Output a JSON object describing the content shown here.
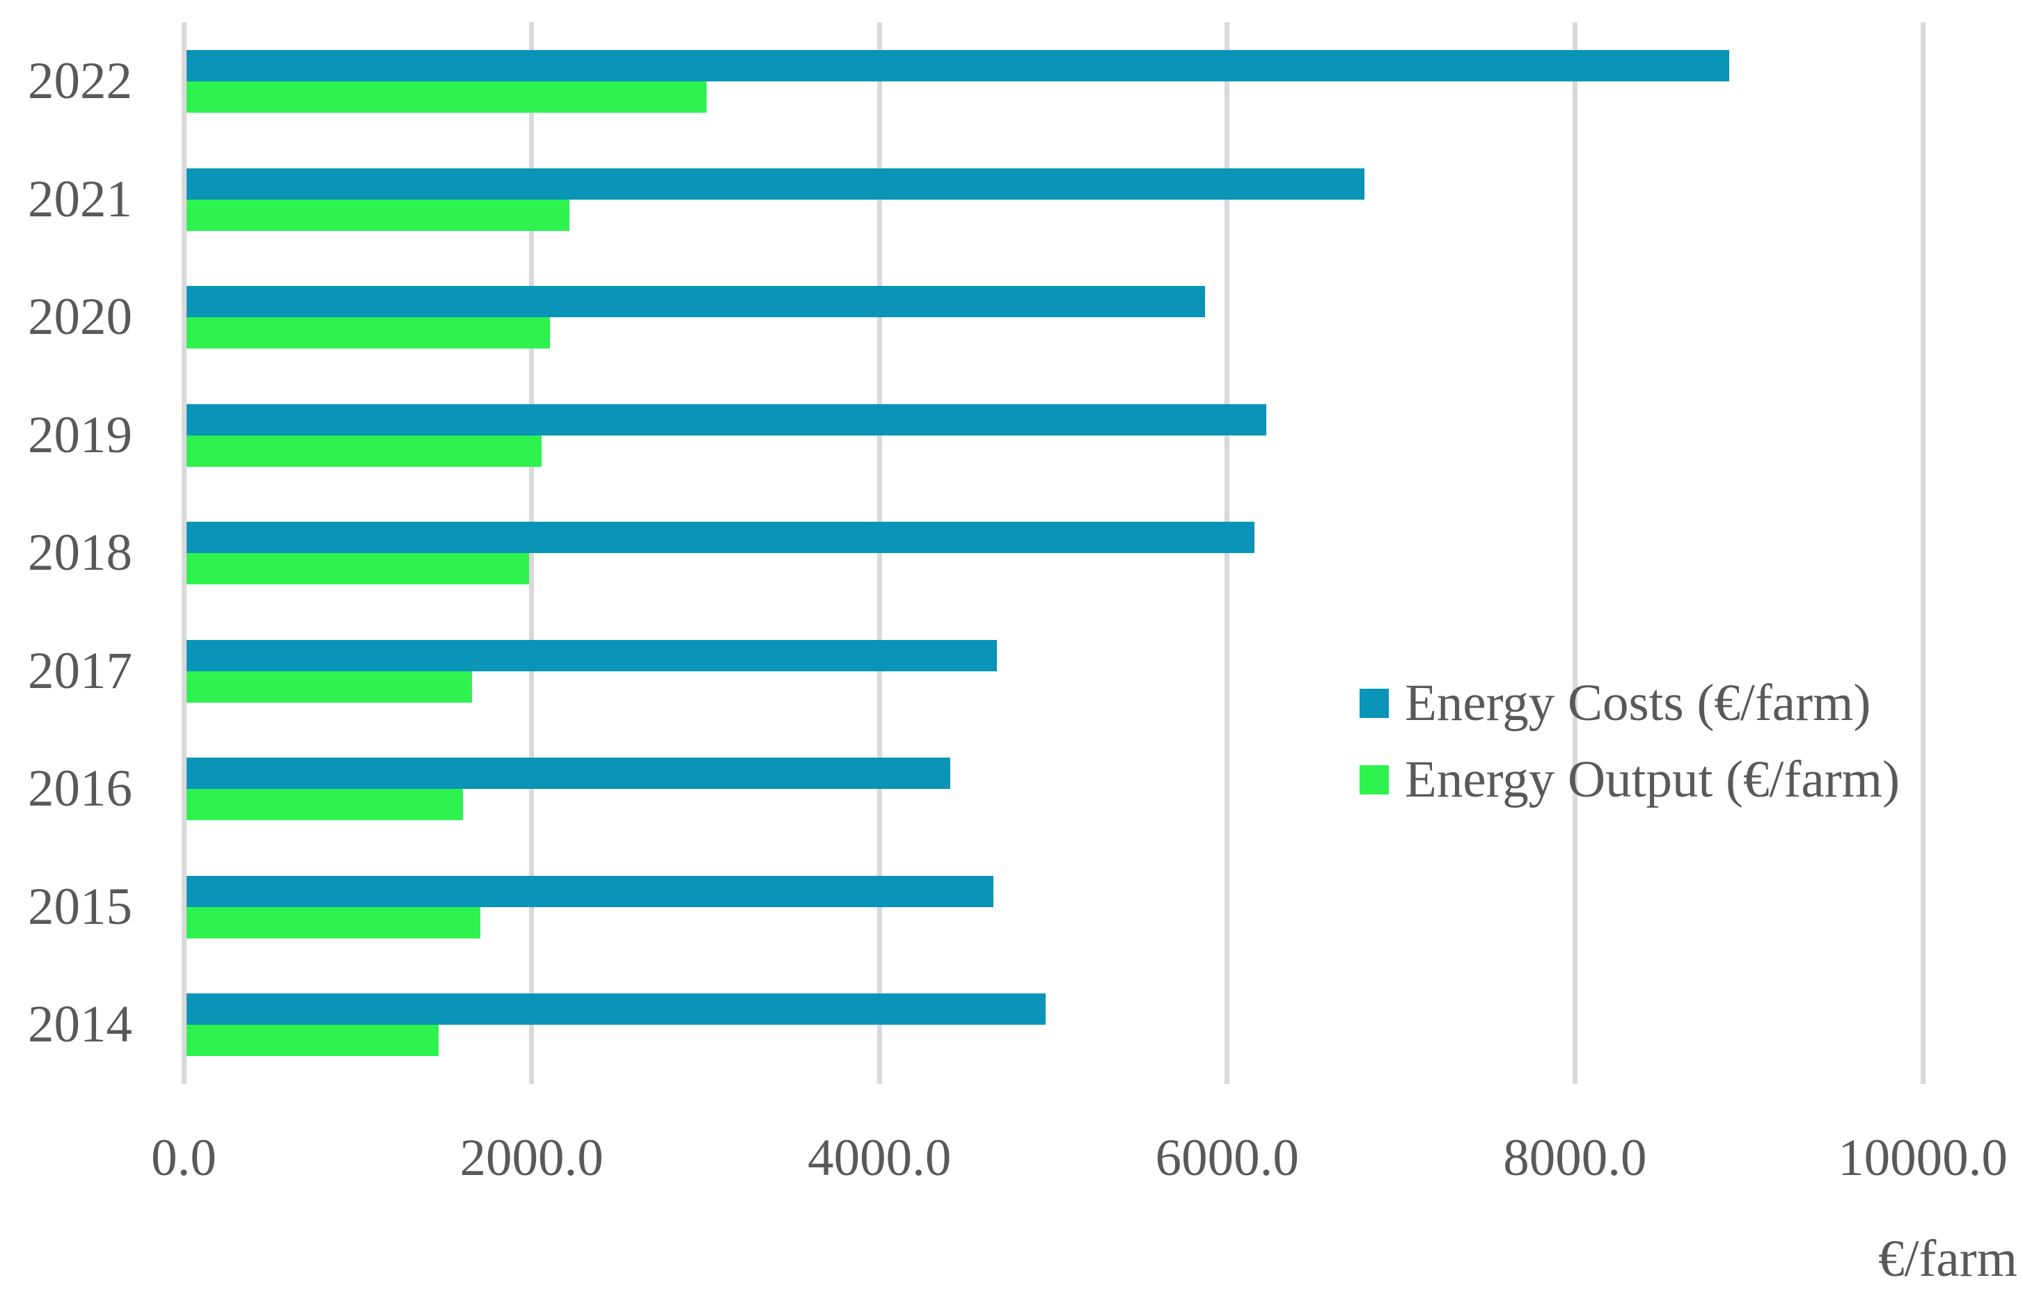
{
  "chart_data": {
    "type": "bar",
    "orientation": "horizontal",
    "categories": [
      "2022",
      "2021",
      "2020",
      "2019",
      "2018",
      "2017",
      "2016",
      "2015",
      "2014"
    ],
    "series": [
      {
        "name": "Energy Costs (€/farm)",
        "color": "#0994b8",
        "values": [
          8870,
          6775,
          5855,
          6210,
          6140,
          4660,
          4390,
          4640,
          4940
        ]
      },
      {
        "name": "Energy Output (€/farm)",
        "color": "#2ef24e",
        "values": [
          2990,
          2200,
          2090,
          2040,
          1970,
          1640,
          1590,
          1690,
          1450
        ]
      }
    ],
    "title": "",
    "xlabel": "€/farm",
    "ylabel": "",
    "xlim": [
      0,
      10000
    ],
    "x_ticks": [
      0,
      2000,
      4000,
      6000,
      8000,
      10000
    ],
    "x_tick_labels": [
      "0.0",
      "2000.0",
      "4000.0",
      "6000.0",
      "8000.0",
      "10000.0"
    ],
    "grid": "vertical-only",
    "legend_position": "middle-right",
    "colors": {
      "grid": "#d9d9d9",
      "text": "#595959",
      "background": "#ffffff"
    }
  }
}
